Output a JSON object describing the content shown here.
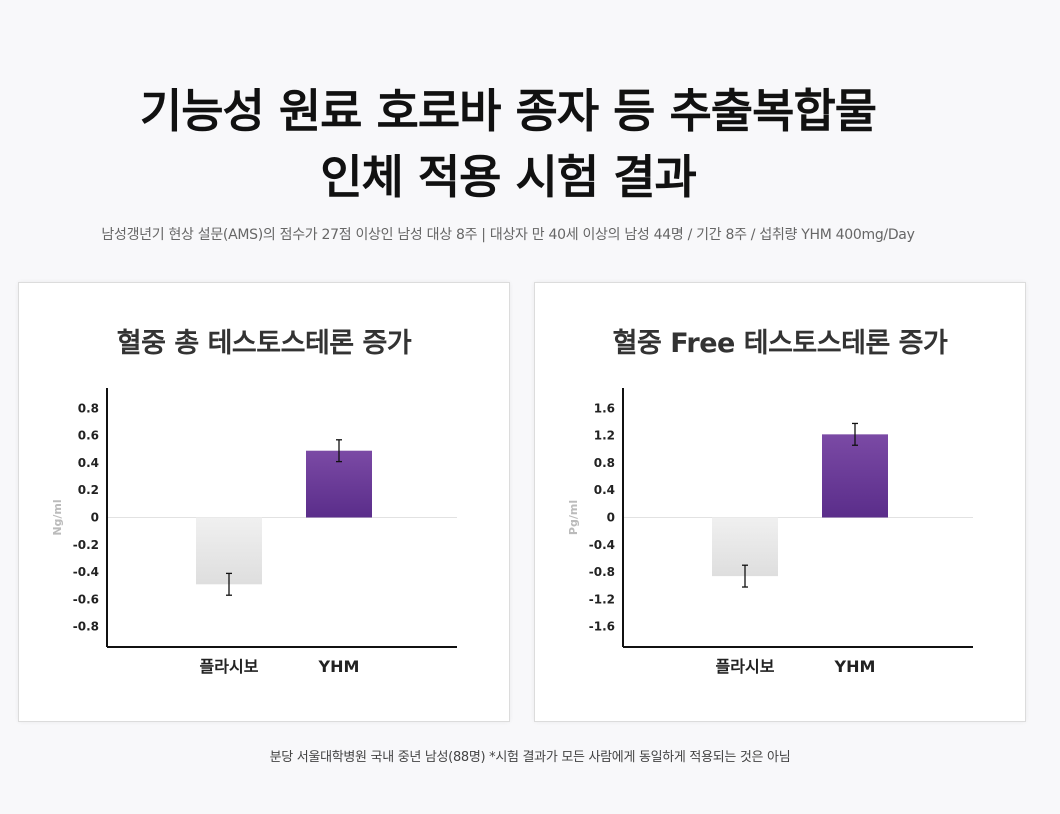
{
  "headline": {
    "line1": "기능성 원료 호로바 종자 등 추출복합물",
    "line2": "인체 적용 시험 결과"
  },
  "subtitle": "남성갱년기 현상 설문(AMS)의 점수가 27점 이상인 남성 대상 8주 | 대상자 만 40세 이상의 남성 44명 / 기간 8주 / 섭취량 YHM 400mg/Day",
  "footnote": "분당 서울대학병원 국내 중년 남성(88명) *시험 결과가 모든 사람에게 동일하게 적용되는 것은 아님",
  "colors": {
    "placebo_top": "#f0f0f0",
    "placebo_bottom": "#dedede",
    "yhm_top": "#7b4aa5",
    "yhm_bottom": "#5a2d8a"
  },
  "chart_data": [
    {
      "type": "bar",
      "title": "혈중 총 테스토스테론 증가",
      "ylabel": "Ng/ml",
      "categories": [
        "플라시보",
        "YHM"
      ],
      "values": [
        -0.49,
        0.49
      ],
      "error": [
        0.08,
        0.08
      ],
      "ylim": [
        -0.95,
        0.95
      ],
      "yticks": [
        0.8,
        0.6,
        0.4,
        0.2,
        0,
        -0.2,
        -0.4,
        -0.6,
        -0.8
      ],
      "ytick_labels": [
        "0.8",
        "0.6",
        "0.4",
        "0.2",
        "0",
        "-0.2",
        "-0.4",
        "-0.6",
        "-0.8"
      ],
      "grid": false
    },
    {
      "type": "bar",
      "title": "혈중 Free 테스토스테론 증가",
      "ylabel": "Pg/ml",
      "categories": [
        "플라시보",
        "YHM"
      ],
      "values": [
        -0.86,
        1.22
      ],
      "error": [
        0.16,
        0.16
      ],
      "ylim": [
        -1.9,
        1.9
      ],
      "yticks": [
        1.6,
        1.2,
        0.8,
        0.4,
        0,
        -0.4,
        -0.8,
        -1.2,
        -1.6
      ],
      "ytick_labels": [
        "1.6",
        "1.2",
        "0.8",
        "0.4",
        "0",
        "-0.4",
        "-0.8",
        "-1.2",
        "-1.6"
      ],
      "grid": false
    }
  ]
}
